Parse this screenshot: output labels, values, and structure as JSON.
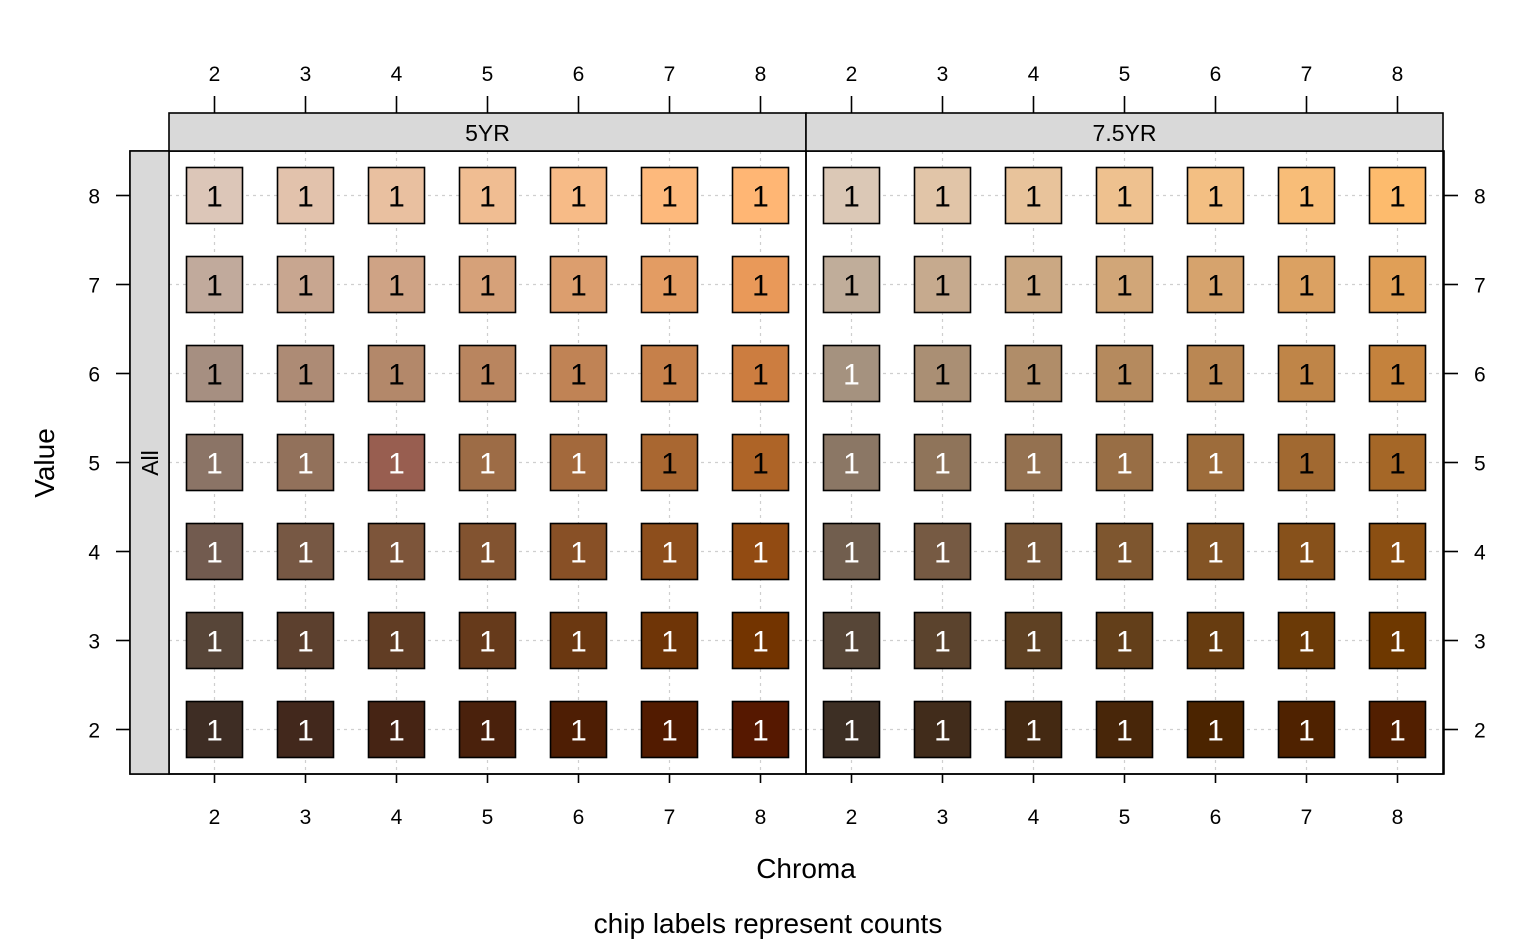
{
  "chart_data": {
    "type": "heatmap",
    "xlabel": "Chroma",
    "ylabel": "Value",
    "caption": "chip labels represent counts",
    "row_strip": "All",
    "x_ticks": [
      2,
      3,
      4,
      5,
      6,
      7,
      8
    ],
    "y_ticks": [
      2,
      3,
      4,
      5,
      6,
      7,
      8
    ],
    "xlim": [
      1.5,
      8.5
    ],
    "ylim": [
      1.5,
      8.5
    ],
    "grid": true,
    "panels": [
      {
        "hue": "5YR",
        "chips": [
          {
            "value": 8,
            "chroma": [
              2,
              3,
              4,
              5,
              6,
              7,
              8
            ],
            "colors": [
              "#dcc6b8",
              "#e2c2ac",
              "#e9c0a0",
              "#f0bd92",
              "#f7bb87",
              "#fdb97c",
              "#ffb674"
            ],
            "counts": [
              1,
              1,
              1,
              1,
              1,
              1,
              1
            ]
          },
          {
            "value": 7,
            "chroma": [
              2,
              3,
              4,
              5,
              6,
              7,
              8
            ],
            "colors": [
              "#c1aa9c",
              "#c8a690",
              "#cfa385",
              "#d6a179",
              "#dc9e6e",
              "#e39c63",
              "#e99959"
            ],
            "counts": [
              1,
              1,
              1,
              1,
              1,
              1,
              1
            ]
          },
          {
            "value": 6,
            "chroma": [
              2,
              3,
              4,
              5,
              6,
              7,
              8
            ],
            "colors": [
              "#a68f81",
              "#ad8b75",
              "#b3886a",
              "#b9855f",
              "#c08355",
              "#c6804a",
              "#cc7d40"
            ],
            "counts": [
              1,
              1,
              1,
              1,
              1,
              1,
              1
            ]
          },
          {
            "value": 5,
            "chroma": [
              2,
              3,
              4,
              5,
              6,
              7,
              8
            ],
            "colors": [
              "#8b7466",
              "#92715b",
              "#985e50",
              "#9d6c46",
              "#a3693c",
              "#a96731",
              "#ae6427"
            ],
            "counts": [
              1,
              1,
              1,
              1,
              1,
              1,
              1
            ]
          },
          {
            "value": 4,
            "chroma": [
              2,
              3,
              4,
              5,
              6,
              7,
              8
            ],
            "colors": [
              "#725b4f",
              "#775844",
              "#7d553a",
              "#825330",
              "#885026",
              "#8d4e1c",
              "#924b12"
            ],
            "counts": [
              1,
              1,
              1,
              1,
              1,
              1,
              1
            ]
          },
          {
            "value": 3,
            "chroma": [
              2,
              3,
              4,
              5,
              6,
              7,
              8
            ],
            "colors": [
              "#574538",
              "#5c402e",
              "#613d24",
              "#663a1b",
              "#6b3811",
              "#6f3507",
              "#733400"
            ],
            "counts": [
              1,
              1,
              1,
              1,
              1,
              1,
              1
            ]
          },
          {
            "value": 2,
            "chroma": [
              2,
              3,
              4,
              5,
              6,
              7,
              8
            ],
            "colors": [
              "#3e2d24",
              "#42281c",
              "#462414",
              "#4a210c",
              "#4e1e04",
              "#521b00",
              "#561800"
            ],
            "counts": [
              1,
              1,
              1,
              1,
              1,
              1,
              1
            ]
          }
        ],
        "label_colors": {
          "8": [
            "#000",
            "#000",
            "#000",
            "#000",
            "#000",
            "#000",
            "#000"
          ],
          "7": [
            "#000",
            "#000",
            "#000",
            "#000",
            "#000",
            "#000",
            "#000"
          ],
          "6": [
            "#000",
            "#000",
            "#000",
            "#000",
            "#000",
            "#000",
            "#000"
          ],
          "5": [
            "#fff",
            "#fff",
            "#fff",
            "#fff",
            "#fff",
            "#000",
            "#000"
          ],
          "4": [
            "#fff",
            "#fff",
            "#fff",
            "#fff",
            "#fff",
            "#fff",
            "#fff"
          ],
          "3": [
            "#fff",
            "#fff",
            "#fff",
            "#fff",
            "#fff",
            "#fff",
            "#fff"
          ],
          "2": [
            "#fff",
            "#fff",
            "#fff",
            "#fff",
            "#fff",
            "#fff",
            "#fff"
          ]
        }
      },
      {
        "hue": "7.5YR",
        "chips": [
          {
            "value": 8,
            "chroma": [
              2,
              3,
              4,
              5,
              6,
              7,
              8
            ],
            "colors": [
              "#dbc8b6",
              "#e1c5a8",
              "#e8c39b",
              "#eec18f",
              "#f3bf83",
              "#f8bd78",
              "#fdbb6d"
            ],
            "counts": [
              1,
              1,
              1,
              1,
              1,
              1,
              1
            ]
          },
          {
            "value": 7,
            "chroma": [
              2,
              3,
              4,
              5,
              6,
              7,
              8
            ],
            "colors": [
              "#c0ad9a",
              "#c6aa8e",
              "#cba883",
              "#d1a678",
              "#d6a36d",
              "#dba162",
              "#e09f57"
            ],
            "counts": [
              1,
              1,
              1,
              1,
              1,
              1,
              1
            ]
          },
          {
            "value": 6,
            "chroma": [
              2,
              3,
              4,
              5,
              6,
              7,
              8
            ],
            "colors": [
              "#a5927f",
              "#aa8f74",
              "#b08d69",
              "#b58a5e",
              "#ba8753",
              "#bf8548",
              "#c4823d"
            ],
            "counts": [
              1,
              1,
              1,
              1,
              1,
              1,
              1
            ]
          },
          {
            "value": 5,
            "chroma": [
              2,
              3,
              4,
              5,
              6,
              7,
              8
            ],
            "colors": [
              "#8b7765",
              "#8f745a",
              "#947150",
              "#986e45",
              "#9d6c3b",
              "#a16931",
              "#a56727"
            ],
            "counts": [
              1,
              1,
              1,
              1,
              1,
              1,
              1
            ]
          },
          {
            "value": 4,
            "chroma": [
              2,
              3,
              4,
              5,
              6,
              7,
              8
            ],
            "colors": [
              "#715e4e",
              "#765a43",
              "#7a5839",
              "#7e562f",
              "#835425",
              "#87511b",
              "#8b4f12"
            ],
            "counts": [
              1,
              1,
              1,
              1,
              1,
              1,
              1
            ]
          },
          {
            "value": 3,
            "chroma": [
              2,
              3,
              4,
              5,
              6,
              7,
              8
            ],
            "colors": [
              "#574637",
              "#5b432d",
              "#5f4123",
              "#633f1a",
              "#673c10",
              "#6b3a07",
              "#6e3800"
            ],
            "counts": [
              1,
              1,
              1,
              1,
              1,
              1,
              1
            ]
          },
          {
            "value": 2,
            "chroma": [
              2,
              3,
              4,
              5,
              6,
              7,
              8
            ],
            "colors": [
              "#3d2f24",
              "#412c1b",
              "#442912",
              "#482609",
              "#4b2400",
              "#4f2200",
              "#521f00"
            ],
            "counts": [
              1,
              1,
              1,
              1,
              1,
              1,
              1
            ]
          }
        ],
        "label_colors": {
          "8": [
            "#000",
            "#000",
            "#000",
            "#000",
            "#000",
            "#000",
            "#000"
          ],
          "7": [
            "#000",
            "#000",
            "#000",
            "#000",
            "#000",
            "#000",
            "#000"
          ],
          "6": [
            "#fff",
            "#000",
            "#000",
            "#000",
            "#000",
            "#000",
            "#000"
          ],
          "5": [
            "#fff",
            "#fff",
            "#fff",
            "#fff",
            "#fff",
            "#000",
            "#000"
          ],
          "4": [
            "#fff",
            "#fff",
            "#fff",
            "#fff",
            "#fff",
            "#fff",
            "#fff"
          ],
          "3": [
            "#fff",
            "#fff",
            "#fff",
            "#fff",
            "#fff",
            "#fff",
            "#fff"
          ],
          "2": [
            "#fff",
            "#fff",
            "#fff",
            "#fff",
            "#fff",
            "#fff",
            "#fff"
          ]
        }
      }
    ]
  }
}
